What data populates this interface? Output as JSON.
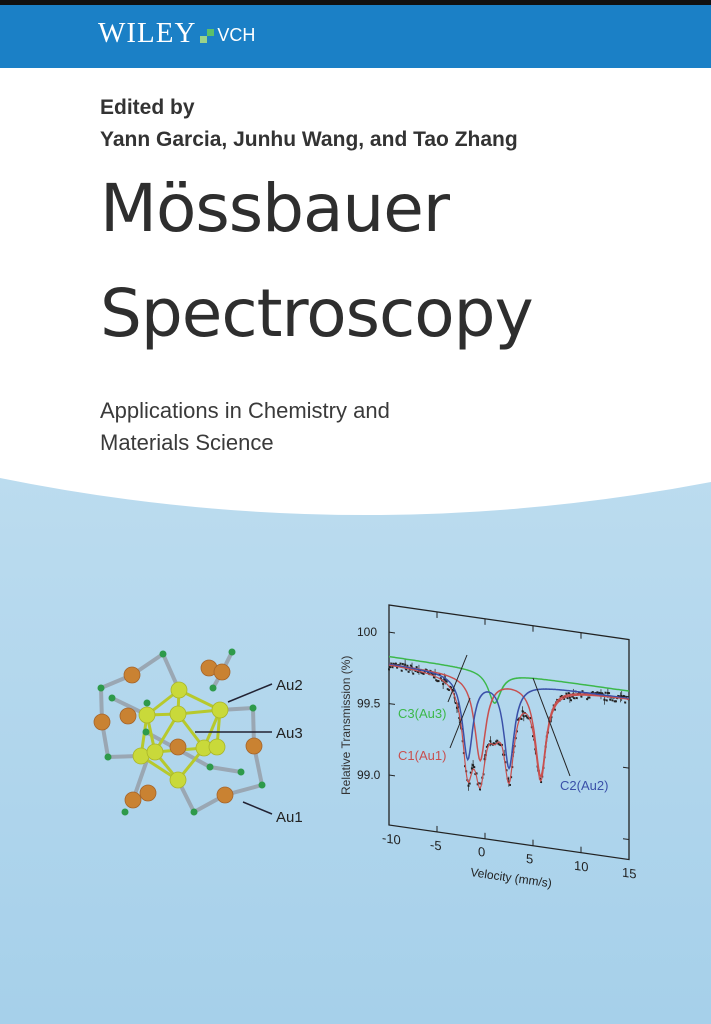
{
  "publisher": {
    "name": "WILEY",
    "imprint": "VCH",
    "banner_color": "#1b80c6"
  },
  "editors": {
    "label": "Edited by",
    "names": "Yann Garcia, Junhu Wang, and Tao Zhang"
  },
  "title": {
    "line1": "Mössbauer",
    "line2": "Spectroscopy"
  },
  "subtitle": {
    "line1": "Applications in Chemistry and",
    "line2": "Materials Science"
  },
  "structure_figure": {
    "labels": [
      "Au2",
      "Au3",
      "Au1"
    ],
    "atom_colors": {
      "gold_cluster": "#c9d93a",
      "orange": "#c98232",
      "green": "#2e9a4a",
      "bond": "#9aa7b3"
    }
  },
  "chart_data": {
    "type": "line",
    "xlabel": "Velocity (mm/s)",
    "ylabel": "Relative Transmission (%)",
    "xlim": [
      -10,
      15
    ],
    "ylim": [
      98.65,
      100.19
    ],
    "x_ticks": [
      "-10",
      "-5",
      "0",
      "5",
      "10",
      "15"
    ],
    "y_ticks": [
      "100",
      "99.5",
      "99.0"
    ],
    "baseline": 99.78,
    "components": [
      {
        "name": "C3(Au3)",
        "color": "#3cb84a",
        "lines": [
          {
            "center": 1.0,
            "depth": 0.22,
            "width": 1.6
          }
        ]
      },
      {
        "name": "C1(Au1)",
        "color": "#c8504f",
        "lines": [
          {
            "center": -0.5,
            "depth": 0.58,
            "width": 1.4
          },
          {
            "center": 5.8,
            "depth": 0.63,
            "width": 1.4
          }
        ]
      },
      {
        "name": "C2(Au2)",
        "color": "#3a50a8",
        "lines": [
          {
            "center": -1.8,
            "depth": 0.58,
            "width": 1.3
          },
          {
            "center": 2.5,
            "depth": 0.6,
            "width": 1.3
          }
        ]
      }
    ]
  }
}
